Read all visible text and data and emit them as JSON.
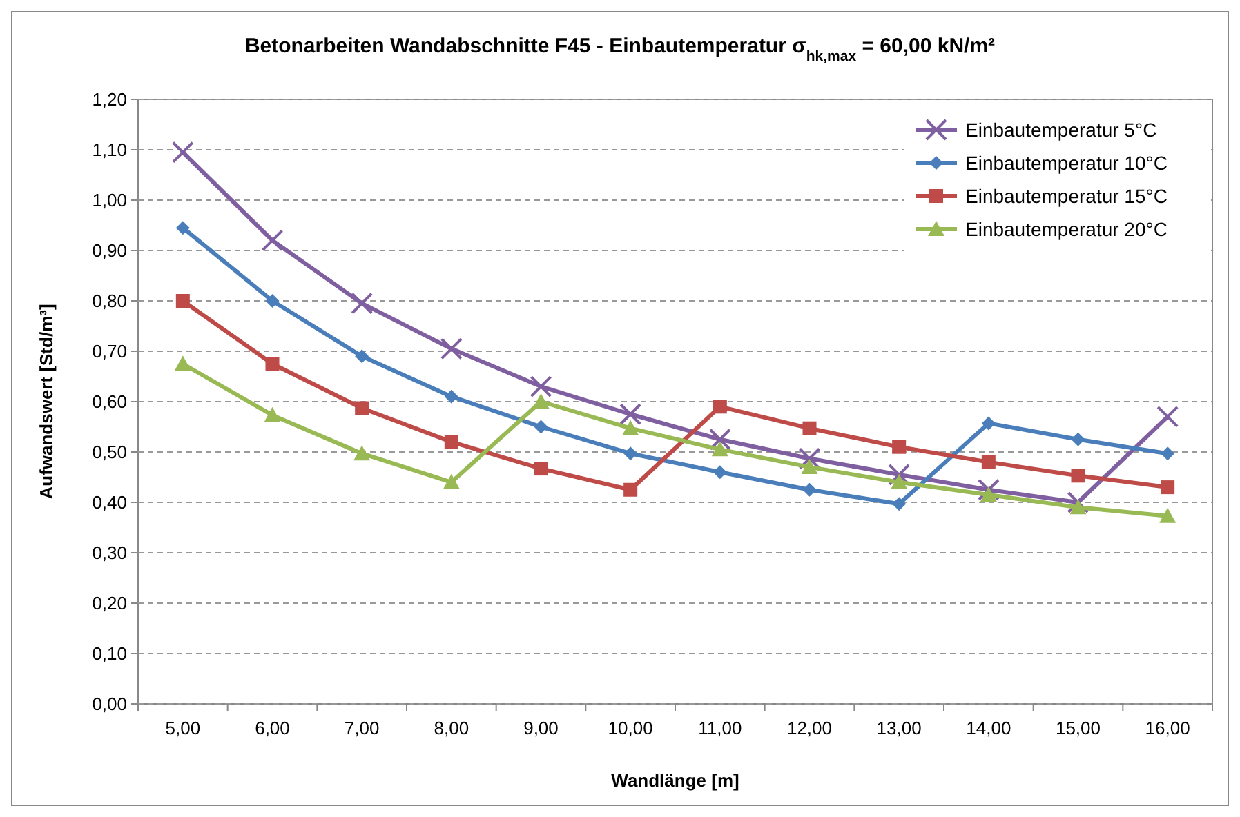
{
  "chart_data": {
    "type": "line",
    "title": "Betonarbeiten Wandabschnitte F45 - Einbautemperatur σ$_{hk,max}$ = 60,00 kN/m²",
    "xlabel": "Wandlänge [m]",
    "ylabel": "Aufwandswert [Std/m³]",
    "categories": [
      "5,00",
      "6,00",
      "7,00",
      "8,00",
      "9,00",
      "10,00",
      "11,00",
      "12,00",
      "13,00",
      "14,00",
      "15,00",
      "16,00"
    ],
    "ylim": [
      0,
      1.2
    ],
    "yticks": [
      {
        "value": 0,
        "label": "0,00"
      },
      {
        "value": 0.1,
        "label": "0,10"
      },
      {
        "value": 0.2,
        "label": "0,20"
      },
      {
        "value": 0.3,
        "label": "0,30"
      },
      {
        "value": 0.4,
        "label": "0,40"
      },
      {
        "value": 0.5,
        "label": "0,50"
      },
      {
        "value": 0.6,
        "label": "0,60"
      },
      {
        "value": 0.7,
        "label": "0,70"
      },
      {
        "value": 0.8,
        "label": "0,80"
      },
      {
        "value": 0.9,
        "label": "0,90"
      },
      {
        "value": 1.0,
        "label": "1,00"
      },
      {
        "value": 1.1,
        "label": "1,10"
      },
      {
        "value": 1.2,
        "label": "1,20"
      }
    ],
    "grid": "y",
    "legend": "top right",
    "line_style": "solid",
    "series": [
      {
        "name": "Einbautemperatur 5°C",
        "color": "#7f5fa0",
        "marker": "cross",
        "values": [
          1.095,
          0.92,
          0.795,
          0.705,
          0.63,
          0.575,
          0.525,
          0.487,
          0.455,
          0.425,
          0.4,
          0.57
        ]
      },
      {
        "name": "Einbautemperatur 10°C",
        "color": "#4a7ebb",
        "marker": "diamond",
        "values": [
          0.945,
          0.8,
          0.69,
          0.61,
          0.55,
          0.497,
          0.46,
          0.425,
          0.397,
          0.557,
          0.525,
          0.497
        ]
      },
      {
        "name": "Einbautemperatur 15°C",
        "color": "#be4b48",
        "marker": "square",
        "values": [
          0.8,
          0.675,
          0.587,
          0.52,
          0.467,
          0.425,
          0.59,
          0.547,
          0.51,
          0.48,
          0.453,
          0.43
        ]
      },
      {
        "name": "Einbautemperatur 20°C",
        "color": "#98b954",
        "marker": "triangle",
        "values": [
          0.675,
          0.573,
          0.497,
          0.44,
          0.6,
          0.547,
          0.505,
          0.47,
          0.44,
          0.415,
          0.39,
          0.373
        ]
      }
    ]
  }
}
